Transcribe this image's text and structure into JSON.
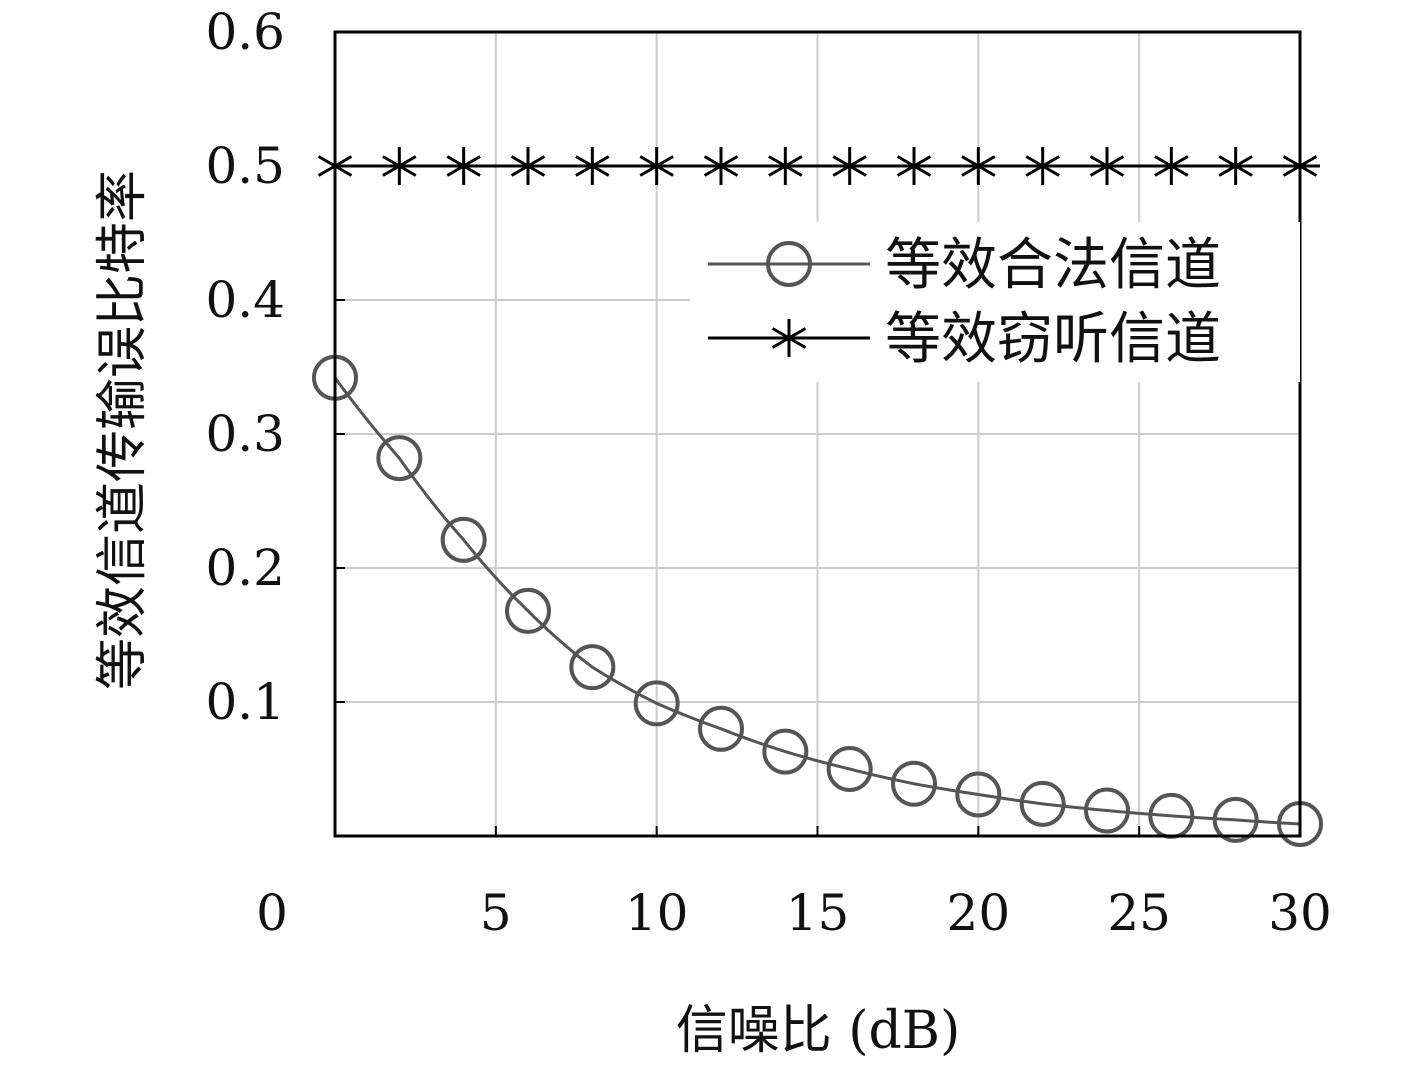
{
  "chart_data": {
    "type": "line",
    "xlabel": "信噪比 (dB)",
    "ylabel": "等效信道传输误比特率",
    "xlim": [
      0,
      30
    ],
    "ylim": [
      0,
      0.6
    ],
    "x_ticks": [
      "0",
      "5",
      "10",
      "15",
      "20",
      "25",
      "30"
    ],
    "y_ticks": [
      "0.1",
      "0.2",
      "0.3",
      "0.4",
      "0.5",
      "0.6"
    ],
    "grid": true,
    "legend_position": "right",
    "series": [
      {
        "name": "等效合法信道",
        "marker": "circle",
        "color": "#555555",
        "x": [
          0,
          2,
          4,
          6,
          8,
          10,
          12,
          14,
          16,
          18,
          20,
          22,
          24,
          26,
          28,
          30
        ],
        "y": [
          0.342,
          0.282,
          0.221,
          0.168,
          0.126,
          0.099,
          0.08,
          0.063,
          0.05,
          0.039,
          0.031,
          0.024,
          0.019,
          0.015,
          0.012,
          0.009
        ]
      },
      {
        "name": "等效窃听信道",
        "marker": "asterisk",
        "color": "#000000",
        "x": [
          0,
          2,
          4,
          6,
          8,
          10,
          12,
          14,
          16,
          18,
          20,
          22,
          24,
          26,
          28,
          30
        ],
        "y": [
          0.5,
          0.5,
          0.5,
          0.5,
          0.5,
          0.5,
          0.5,
          0.5,
          0.5,
          0.5,
          0.5,
          0.5,
          0.5,
          0.5,
          0.5,
          0.5
        ]
      }
    ]
  }
}
